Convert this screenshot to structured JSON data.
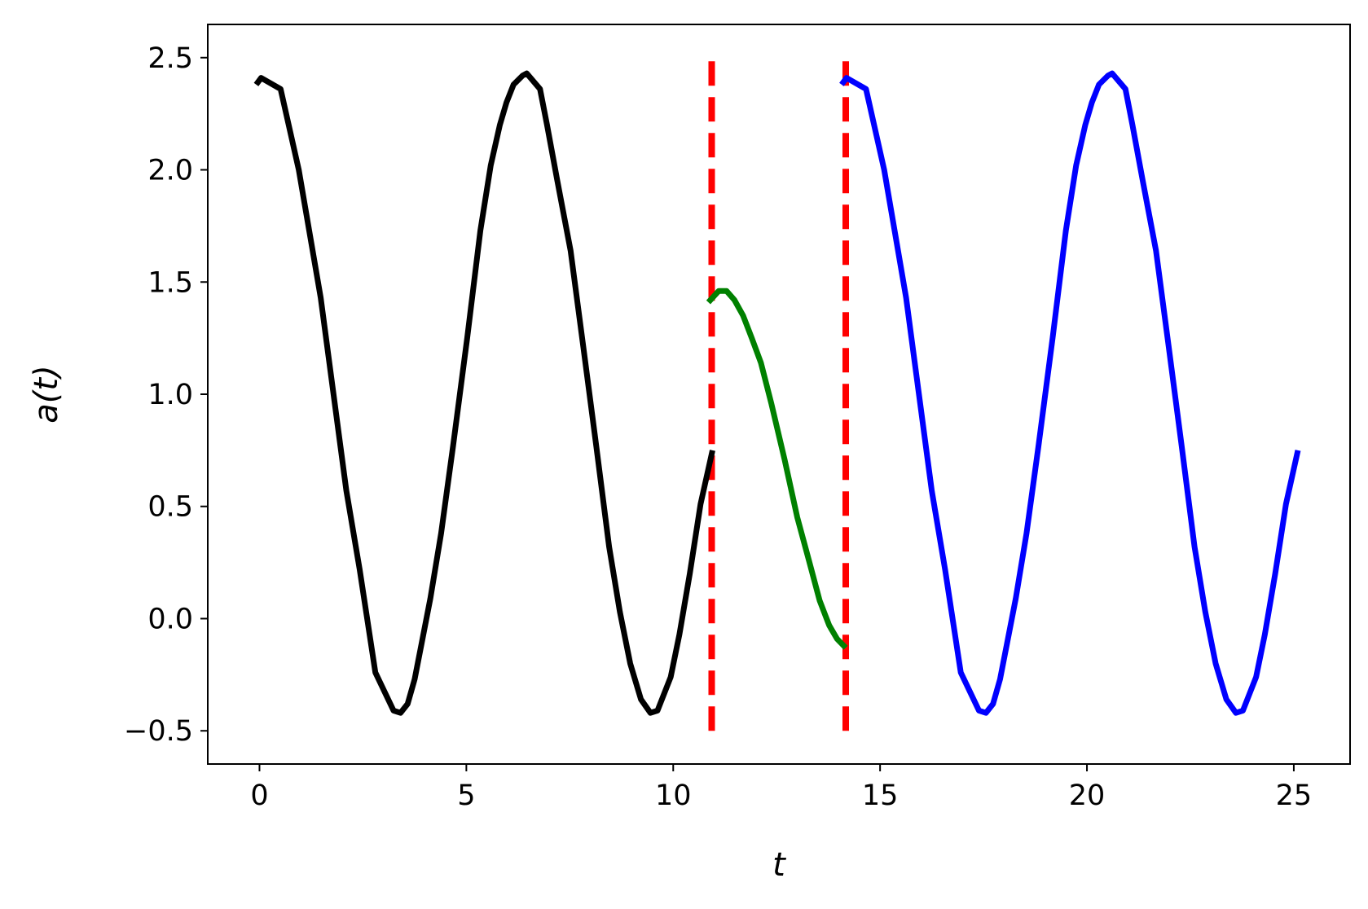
{
  "chart_data": {
    "type": "line",
    "xlabel": "t",
    "ylabel": "a(t)",
    "xlim": [
      -1.25,
      26.36
    ],
    "ylim": [
      -0.648,
      2.648
    ],
    "xticks": [
      0,
      5,
      10,
      15,
      20,
      25
    ],
    "yticks": [
      {
        "value": -0.5,
        "label": "−0.5"
      },
      {
        "value": 0,
        "label": "0.0"
      },
      0.5,
      {
        "value": 1,
        "label": "1.0"
      },
      1.5,
      {
        "value": 2,
        "label": "2.0"
      },
      2.5
    ],
    "series": [
      {
        "color": "#000000",
        "x": [
          -0.08,
          0.04,
          0.51,
          0.95,
          1.48,
          2.1,
          2.42,
          2.8,
          3.24,
          3.41,
          3.58,
          3.75,
          3.92,
          4.13,
          4.39,
          4.68,
          5.02,
          5.34,
          5.59,
          5.81,
          5.97,
          6.14,
          6.36,
          6.46,
          6.78,
          6.95,
          7.2,
          7.52,
          7.82,
          8.14,
          8.45,
          8.71,
          8.96,
          9.22,
          9.45,
          9.62,
          9.94,
          10.15,
          10.4,
          10.66,
          10.95
        ],
        "values": [
          2.38,
          2.41,
          2.36,
          2.0,
          1.43,
          0.57,
          0.22,
          -0.24,
          -0.41,
          -0.42,
          -0.38,
          -0.27,
          -0.11,
          0.09,
          0.38,
          0.77,
          1.25,
          1.73,
          2.02,
          2.2,
          2.3,
          2.38,
          2.42,
          2.43,
          2.36,
          2.2,
          1.95,
          1.64,
          1.22,
          0.77,
          0.32,
          0.03,
          -0.2,
          -0.36,
          -0.42,
          -0.41,
          -0.26,
          -0.07,
          0.2,
          0.51,
          0.75
        ]
      },
      {
        "color": "#008000",
        "x": [
          10.85,
          11.1,
          11.29,
          11.48,
          11.69,
          11.9,
          12.12,
          12.37,
          12.69,
          13.0,
          13.28,
          13.54,
          13.77,
          13.96,
          14.17
        ],
        "values": [
          1.41,
          1.46,
          1.46,
          1.42,
          1.35,
          1.25,
          1.14,
          0.96,
          0.71,
          0.45,
          0.26,
          0.08,
          -0.03,
          -0.09,
          -0.13
        ]
      },
      {
        "color": "#0000ff",
        "x": [
          14.07,
          14.19,
          14.66,
          15.1,
          15.63,
          16.25,
          16.57,
          16.95,
          17.39,
          17.56,
          17.73,
          17.9,
          18.07,
          18.28,
          18.54,
          18.83,
          19.17,
          19.49,
          19.74,
          19.96,
          20.12,
          20.29,
          20.51,
          20.61,
          20.93,
          21.1,
          21.35,
          21.67,
          21.97,
          22.29,
          22.6,
          22.86,
          23.11,
          23.37,
          23.6,
          23.77,
          24.09,
          24.3,
          24.55,
          24.81,
          25.1
        ],
        "values": [
          2.38,
          2.41,
          2.36,
          2.0,
          1.43,
          0.57,
          0.22,
          -0.24,
          -0.41,
          -0.42,
          -0.38,
          -0.27,
          -0.11,
          0.09,
          0.38,
          0.77,
          1.25,
          1.73,
          2.02,
          2.2,
          2.3,
          2.38,
          2.42,
          2.43,
          2.36,
          2.2,
          1.95,
          1.64,
          1.22,
          0.77,
          0.32,
          0.03,
          -0.2,
          -0.36,
          -0.42,
          -0.41,
          -0.26,
          -0.07,
          0.2,
          0.51,
          0.75
        ]
      }
    ],
    "vlines": [
      10.93,
      14.17
    ],
    "vline_range": [
      -0.5,
      2.5
    ],
    "vline_color": "#ff0000"
  }
}
